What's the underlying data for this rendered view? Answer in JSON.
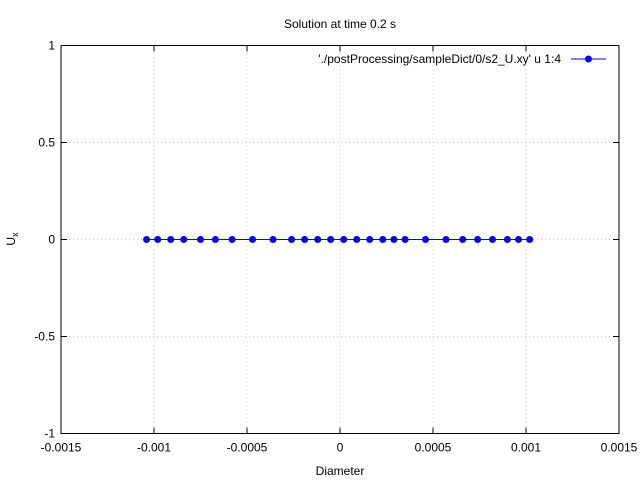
{
  "chart_data": {
    "type": "line",
    "title": "Solution at time 0.2 s",
    "xlabel": "Diameter",
    "ylabel": "U",
    "ylabel_sub": "x",
    "xlim": [
      -0.0015,
      0.0015
    ],
    "ylim": [
      -1,
      1
    ],
    "xticks": [
      -0.0015,
      -0.001,
      -0.0005,
      0,
      0.0005,
      0.001,
      0.0015
    ],
    "xtick_labels": [
      "-0.0015",
      "-0.001",
      "-0.0005",
      "0",
      "0.0005",
      "0.001",
      "0.0015"
    ],
    "yticks": [
      -1,
      -0.5,
      0,
      0.5,
      1
    ],
    "ytick_labels": [
      "-1",
      "-0.5",
      "0",
      "0.5",
      "1"
    ],
    "grid": true,
    "legend_position": "top-right",
    "series": [
      {
        "name": "'./postProcessing/sampleDict/0/s2_U.xy' u 1:4",
        "color": "#0000ff",
        "marker": "circle",
        "x": [
          -0.00104,
          -0.00098,
          -0.00091,
          -0.00084,
          -0.00075,
          -0.00067,
          -0.00058,
          -0.00047,
          -0.00036,
          -0.00026,
          -0.00019,
          -0.00012,
          -5e-05,
          2e-05,
          9e-05,
          0.00016,
          0.00023,
          0.00029,
          0.00035,
          0.00046,
          0.00057,
          0.00066,
          0.00074,
          0.00082,
          0.0009,
          0.00096,
          0.00102
        ],
        "y": [
          0,
          0,
          0,
          0,
          0,
          0,
          0,
          0,
          0,
          0,
          0,
          0,
          0,
          0,
          0,
          0,
          0,
          0,
          0,
          0,
          0,
          0,
          0,
          0,
          0,
          0,
          0
        ]
      }
    ]
  }
}
